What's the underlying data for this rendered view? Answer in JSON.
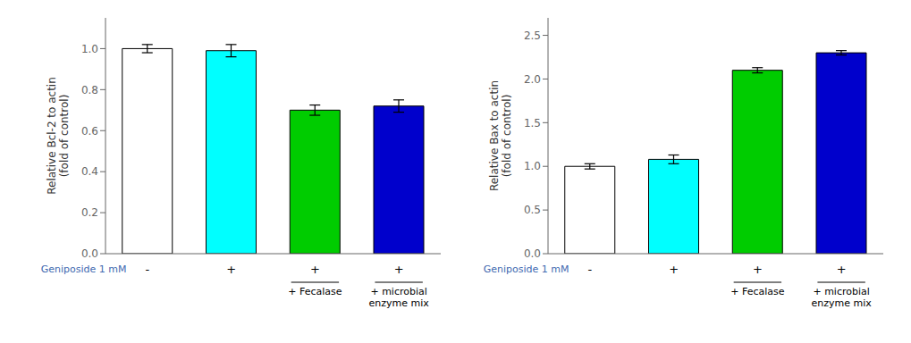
{
  "chart_data": [
    {
      "type": "bar",
      "ylabel": "Relative Bcl-2 to actin\n(fold of control)",
      "categories": [
        "-",
        "+",
        "+",
        "+"
      ],
      "values": [
        1.0,
        0.99,
        0.7,
        0.72
      ],
      "errors": [
        0.02,
        0.03,
        0.025,
        0.03
      ],
      "colors": [
        "#ffffff",
        "#00ffff",
        "#00cc00",
        "#0000cc"
      ],
      "ylim": [
        0,
        1.15
      ],
      "yticks": [
        {
          "value": 0.0,
          "label": "0.0"
        },
        {
          "value": 0.2,
          "label": "0.2"
        },
        {
          "value": 0.4,
          "label": "0.4"
        },
        {
          "value": 0.6,
          "label": "0.6"
        },
        {
          "value": 0.8,
          "label": "0.8"
        },
        {
          "value": 1.0,
          "label": "1.0"
        }
      ],
      "annotations": [
        {
          "text": "Geniposide 1 mM",
          "color": "#4169B0"
        },
        {
          "text": "+ Fecalase"
        },
        {
          "text": "+ microbial\nenzyme mix"
        }
      ],
      "grid": false
    },
    {
      "type": "bar",
      "ylabel": "Relative Bax to actin\n(fold of control)",
      "categories": [
        "-",
        "+",
        "+",
        "+"
      ],
      "values": [
        1.0,
        1.08,
        2.1,
        2.3
      ],
      "errors": [
        0.03,
        0.05,
        0.03,
        0.025
      ],
      "colors": [
        "#ffffff",
        "#00ffff",
        "#00cc00",
        "#0000cc"
      ],
      "ylim": [
        0,
        2.7
      ],
      "yticks": [
        {
          "value": 0.0,
          "label": "0.0"
        },
        {
          "value": 0.5,
          "label": "0.5"
        },
        {
          "value": 1.0,
          "label": "1.0"
        },
        {
          "value": 1.5,
          "label": "1.5"
        },
        {
          "value": 2.0,
          "label": "2.0"
        },
        {
          "value": 2.5,
          "label": "2.5"
        }
      ],
      "annotations": [
        {
          "text": "Geniposide 1 mM",
          "color": "#4169B0"
        },
        {
          "text": "+ Fecalase"
        },
        {
          "text": "+ microbial\nenzyme mix"
        }
      ],
      "grid": false
    }
  ]
}
